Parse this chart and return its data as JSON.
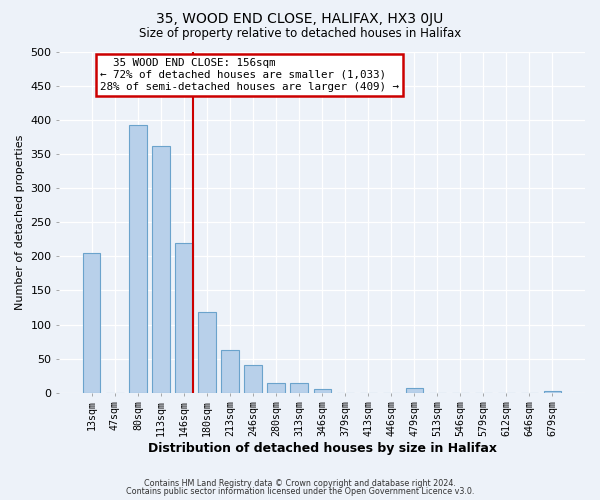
{
  "title": "35, WOOD END CLOSE, HALIFAX, HX3 0JU",
  "subtitle": "Size of property relative to detached houses in Halifax",
  "xlabel": "Distribution of detached houses by size in Halifax",
  "ylabel": "Number of detached properties",
  "categories": [
    "13sqm",
    "47sqm",
    "80sqm",
    "113sqm",
    "146sqm",
    "180sqm",
    "213sqm",
    "246sqm",
    "280sqm",
    "313sqm",
    "346sqm",
    "379sqm",
    "413sqm",
    "446sqm",
    "479sqm",
    "513sqm",
    "546sqm",
    "579sqm",
    "612sqm",
    "646sqm",
    "679sqm"
  ],
  "values": [
    205,
    0,
    393,
    362,
    220,
    118,
    63,
    41,
    15,
    15,
    6,
    0,
    0,
    0,
    7,
    0,
    0,
    0,
    0,
    0,
    2
  ],
  "bar_color": "#b8d0ea",
  "bar_edge_color": "#6ba3cc",
  "vline_color": "#cc0000",
  "annotation_title": "35 WOOD END CLOSE: 156sqm",
  "annotation_line1": "← 72% of detached houses are smaller (1,033)",
  "annotation_line2": "28% of semi-detached houses are larger (409) →",
  "annotation_box_color": "#ffffff",
  "annotation_box_edge": "#cc0000",
  "footer1": "Contains HM Land Registry data © Crown copyright and database right 2024.",
  "footer2": "Contains public sector information licensed under the Open Government Licence v3.0.",
  "ylim": [
    0,
    500
  ],
  "background_color": "#edf2f9",
  "grid_color": "#ffffff",
  "yticks": [
    0,
    50,
    100,
    150,
    200,
    250,
    300,
    350,
    400,
    450,
    500
  ]
}
